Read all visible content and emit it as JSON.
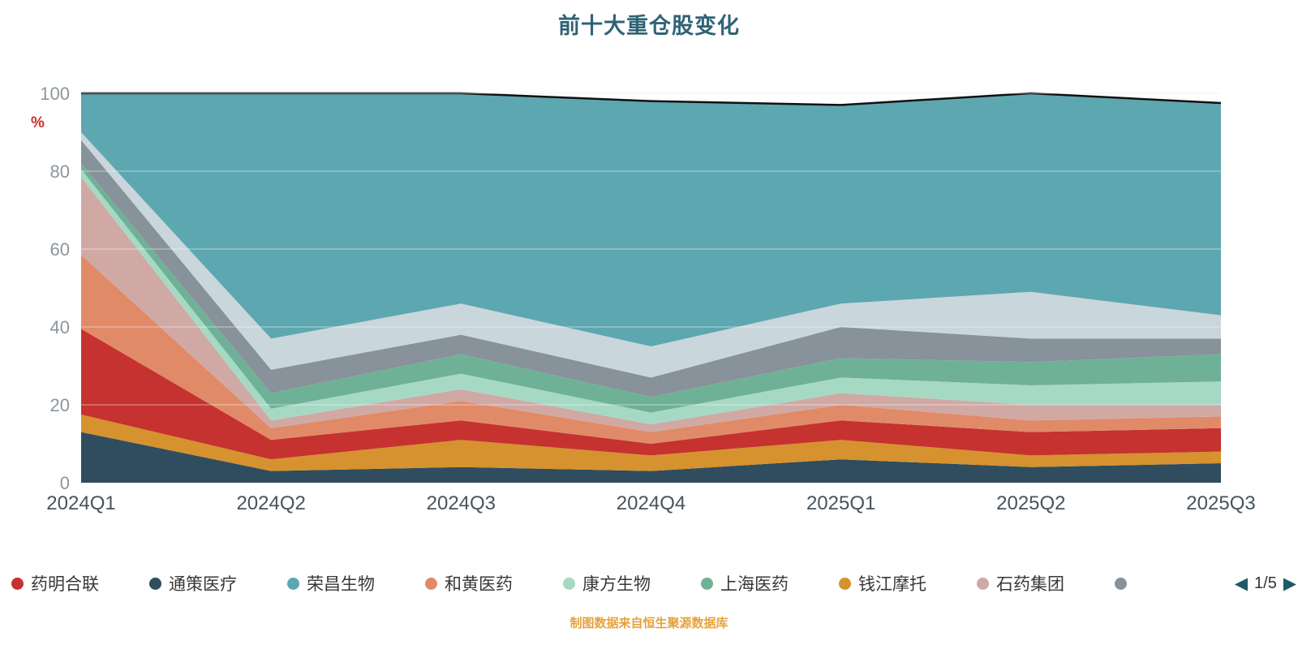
{
  "y_axis_unit": "%",
  "source_note": "制图数据来自恒生聚源数据库",
  "pagination": {
    "prev_icon": "◀",
    "label": "1/5",
    "next_icon": "▶"
  },
  "legend": {
    "items": [
      {
        "label": "药明合联",
        "color": "#c53230"
      },
      {
        "label": "通策医疗",
        "color": "#2f4d5e"
      },
      {
        "label": "荣昌生物",
        "color": "#5da7b0"
      },
      {
        "label": "和黄医药",
        "color": "#e18a68"
      },
      {
        "label": "康方生物",
        "color": "#a6d9c4"
      },
      {
        "label": "上海医药",
        "color": "#6fb196"
      },
      {
        "label": "钱江摩托",
        "color": "#d5922e"
      },
      {
        "label": "石药集团",
        "color": "#d0a9a4"
      },
      {
        "label": "",
        "color": "#87929a"
      }
    ]
  },
  "chart_data": {
    "type": "area",
    "stacked": true,
    "title": "前十大重仓股变化",
    "xlabel": "",
    "ylabel": "%",
    "ylim": [
      0,
      100
    ],
    "yticks": [
      0,
      20,
      40,
      60,
      80,
      100
    ],
    "grid": true,
    "legend_position": "bottom",
    "categories": [
      "2024Q1",
      "2024Q2",
      "2024Q3",
      "2024Q4",
      "2025Q1",
      "2025Q2",
      "2025Q3"
    ],
    "series": [
      {
        "name": "通策医疗",
        "color": "#2f4d5e",
        "values": [
          13,
          3,
          4,
          3,
          6,
          4,
          5
        ]
      },
      {
        "name": "钱江摩托",
        "color": "#d5922e",
        "values": [
          4.5,
          3,
          7,
          4,
          5,
          3,
          3
        ]
      },
      {
        "name": "药明合联",
        "color": "#c53230",
        "values": [
          22,
          5,
          5,
          3,
          5,
          6,
          6
        ]
      },
      {
        "name": "和黄医药",
        "color": "#e18a68",
        "values": [
          19,
          3,
          5,
          3,
          4,
          3,
          3
        ]
      },
      {
        "name": "石药集团",
        "color": "#d0a9a4",
        "values": [
          20,
          2,
          3,
          2,
          3,
          4,
          3
        ]
      },
      {
        "name": "康方生物",
        "color": "#a6d9c4",
        "values": [
          2,
          3,
          4,
          3,
          4,
          5,
          6
        ]
      },
      {
        "name": "上海医药",
        "color": "#6fb196",
        "values": [
          1.5,
          4,
          5,
          4,
          5,
          6,
          7
        ]
      },
      {
        "name": "",
        "color": "#87929a",
        "values": [
          6,
          6,
          5,
          5,
          8,
          6,
          4
        ]
      },
      {
        "name": "",
        "color": "#c9d6dc",
        "values": [
          2,
          8,
          8,
          8,
          6,
          12,
          6
        ]
      },
      {
        "name": "荣昌生物",
        "color": "#5da7b0",
        "values": [
          10,
          63,
          54,
          63,
          51,
          51,
          54.5
        ]
      }
    ]
  }
}
